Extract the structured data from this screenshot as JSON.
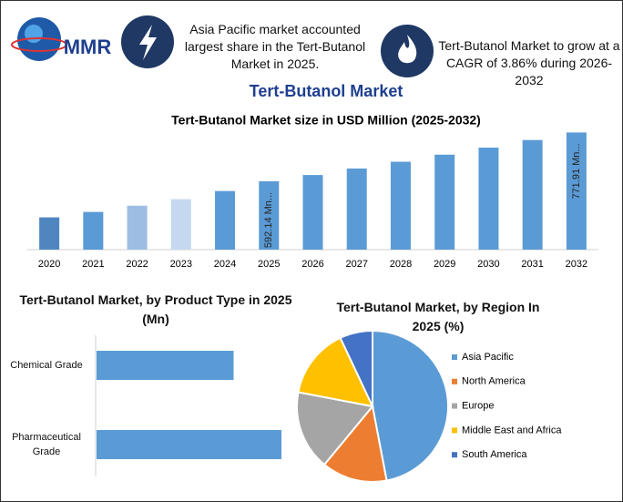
{
  "header": {
    "logo": "MMR",
    "title": "Tert-Butanol Market",
    "callouts": [
      "Asia Pacific market accounted largest share in the Tert-Butanol Market in 2025.",
      "Tert-Butanol Market to grow at a CAGR of 3.86% during 2026-2032"
    ]
  },
  "chart_data": [
    {
      "type": "bar",
      "title": "Tert-Butanol Market size in USD Million (2025-2032)",
      "categories": [
        "2020",
        "2021",
        "2022",
        "2023",
        "2024",
        "2025",
        "2026",
        "2027",
        "2028",
        "2029",
        "2030",
        "2031",
        "2032"
      ],
      "values": [
        459,
        479,
        502,
        526,
        556,
        592.14,
        615,
        639,
        664,
        690,
        716,
        744,
        771.91
      ],
      "value_labels": [
        null,
        null,
        null,
        null,
        null,
        "592.14 Mn...",
        null,
        null,
        null,
        null,
        null,
        null,
        "771.91 Mn..."
      ],
      "colors": [
        "#4f86c0",
        "#5b9bd5",
        "#9dbde3",
        "#c5d8f0",
        "#5b9bd5",
        "#5b9bd5",
        "#5b9bd5",
        "#5b9bd5",
        "#5b9bd5",
        "#5b9bd5",
        "#5b9bd5",
        "#5b9bd5",
        "#5b9bd5"
      ],
      "ylim": [
        340,
        790
      ]
    },
    {
      "type": "hbar",
      "title": "Tert-Butanol Market, by Product Type in 2025 (Mn)",
      "categories": [
        "Chemical Grade",
        "Pharmaceutical Grade"
      ],
      "values": [
        252,
        340
      ],
      "color": "#5b9bd5",
      "xlim": [
        0,
        350
      ]
    },
    {
      "type": "pie",
      "title": "Tert-Butanol Market, by Region In 2025 (%)",
      "categories": [
        "Asia Pacific",
        "North America",
        "Europe",
        "Middle East and Africa",
        "South America"
      ],
      "values": [
        47,
        14,
        17,
        15,
        7
      ],
      "colors": [
        "#5b9bd5",
        "#ed7d31",
        "#a5a5a5",
        "#ffc000",
        "#4472c4"
      ]
    }
  ]
}
